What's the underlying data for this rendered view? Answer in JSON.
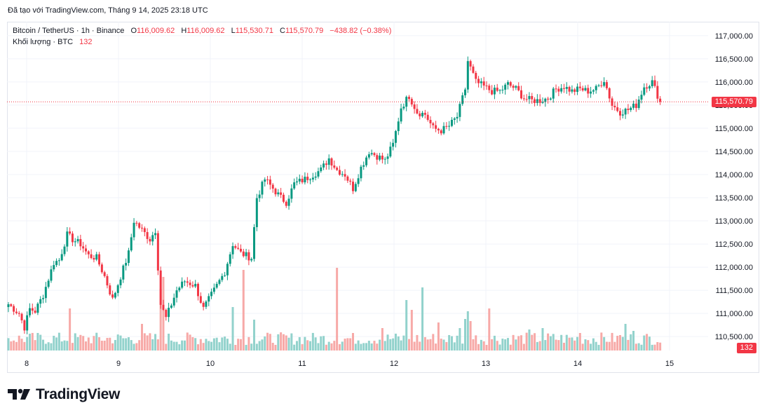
{
  "caption": "Đã tạo với TradingView.com, Tháng 9 14, 2025 23:18 UTC",
  "brand": "TradingView",
  "legend": {
    "symbol": "Bitcoin / TetherUS · 1h · Binance",
    "open_label": "O",
    "open": "116,009.62",
    "high_label": "H",
    "high": "116,009.62",
    "low_label": "L",
    "low": "115,530.71",
    "close_label": "C",
    "close": "115,570.79",
    "change": "−438.82 (−0.38%)",
    "volume_label": "Khối lượng · BTC",
    "volume": "132"
  },
  "colors": {
    "up": "#089981",
    "down": "#f23645",
    "up_vol": "#92d2cc",
    "down_vol": "#f7a9a7",
    "grid": "#f0f3fa"
  },
  "chart_data": {
    "type": "candlestick",
    "ylim": [
      110200,
      117300
    ],
    "y_ticks": [
      "117,000.00",
      "116,500.00",
      "116,000.00",
      "115,500.00",
      "115,000.00",
      "114,500.00",
      "114,000.00",
      "113,500.00",
      "113,000.00",
      "112,500.00",
      "112,000.00",
      "111,500.00",
      "111,000.00",
      "110,500.00"
    ],
    "x_ticks": [
      "8",
      "9",
      "10",
      "11",
      "12",
      "13",
      "14",
      "15"
    ],
    "last_price": "115,570.79",
    "volume_tag": "132",
    "anchors": [
      [
        0,
        111200
      ],
      [
        4,
        111000
      ],
      [
        6,
        110700
      ],
      [
        8,
        111100
      ],
      [
        10,
        111050
      ],
      [
        13,
        111400
      ],
      [
        17,
        112100
      ],
      [
        19,
        112150
      ],
      [
        22,
        112700
      ],
      [
        24,
        112600
      ],
      [
        27,
        112500
      ],
      [
        30,
        112250
      ],
      [
        33,
        112200
      ],
      [
        36,
        111800
      ],
      [
        39,
        111300
      ],
      [
        42,
        111800
      ],
      [
        45,
        112300
      ],
      [
        47,
        113000
      ],
      [
        50,
        112800
      ],
      [
        53,
        112600
      ],
      [
        55,
        112800
      ],
      [
        57,
        111200
      ],
      [
        59,
        110900
      ],
      [
        61,
        111200
      ],
      [
        63,
        111500
      ],
      [
        66,
        111700
      ],
      [
        70,
        111600
      ],
      [
        73,
        111100
      ],
      [
        75,
        111300
      ],
      [
        78,
        111600
      ],
      [
        81,
        111900
      ],
      [
        84,
        112500
      ],
      [
        87,
        112300
      ],
      [
        91,
        112200
      ],
      [
        93,
        113500
      ],
      [
        96,
        113900
      ],
      [
        99,
        113700
      ],
      [
        102,
        113500
      ],
      [
        104,
        113400
      ],
      [
        107,
        113800
      ],
      [
        111,
        113900
      ],
      [
        114,
        114000
      ],
      [
        117,
        114100
      ],
      [
        120,
        114350
      ],
      [
        123,
        114100
      ],
      [
        126,
        114000
      ],
      [
        129,
        113700
      ],
      [
        132,
        114150
      ],
      [
        135,
        114500
      ],
      [
        138,
        114400
      ],
      [
        141,
        114300
      ],
      [
        144,
        114650
      ],
      [
        147,
        115450
      ],
      [
        150,
        115700
      ],
      [
        153,
        115350
      ],
      [
        156,
        115300
      ],
      [
        159,
        115000
      ],
      [
        162,
        114950
      ],
      [
        165,
        115050
      ],
      [
        168,
        115250
      ],
      [
        171,
        115850
      ],
      [
        172,
        116450
      ],
      [
        175,
        116000
      ],
      [
        178,
        115900
      ],
      [
        181,
        115800
      ],
      [
        184,
        115800
      ],
      [
        187,
        115950
      ],
      [
        190,
        115850
      ],
      [
        193,
        115650
      ],
      [
        196,
        115600
      ],
      [
        199,
        115600
      ],
      [
        202,
        115650
      ],
      [
        205,
        115850
      ],
      [
        208,
        115900
      ],
      [
        211,
        115800
      ],
      [
        214,
        115850
      ],
      [
        217,
        115800
      ],
      [
        220,
        115850
      ],
      [
        223,
        116050
      ],
      [
        226,
        115500
      ],
      [
        229,
        115350
      ],
      [
        232,
        115400
      ],
      [
        235,
        115500
      ],
      [
        238,
        115900
      ],
      [
        241,
        116000
      ],
      [
        244,
        115570.79
      ]
    ],
    "volume_peaks": [
      [
        23,
        60
      ],
      [
        50,
        38
      ],
      [
        57,
        88
      ],
      [
        58,
        105
      ],
      [
        84,
        62
      ],
      [
        88,
        115
      ],
      [
        92,
        44
      ],
      [
        123,
        118
      ],
      [
        140,
        32
      ],
      [
        149,
        72
      ],
      [
        151,
        58
      ],
      [
        155,
        90
      ],
      [
        161,
        40
      ],
      [
        169,
        32
      ],
      [
        171,
        45
      ],
      [
        172,
        56
      ],
      [
        173,
        42
      ],
      [
        180,
        60
      ],
      [
        195,
        30
      ],
      [
        200,
        32
      ],
      [
        214,
        25
      ],
      [
        229,
        22
      ],
      [
        231,
        38
      ],
      [
        234,
        28
      ],
      [
        243,
        12
      ]
    ]
  }
}
